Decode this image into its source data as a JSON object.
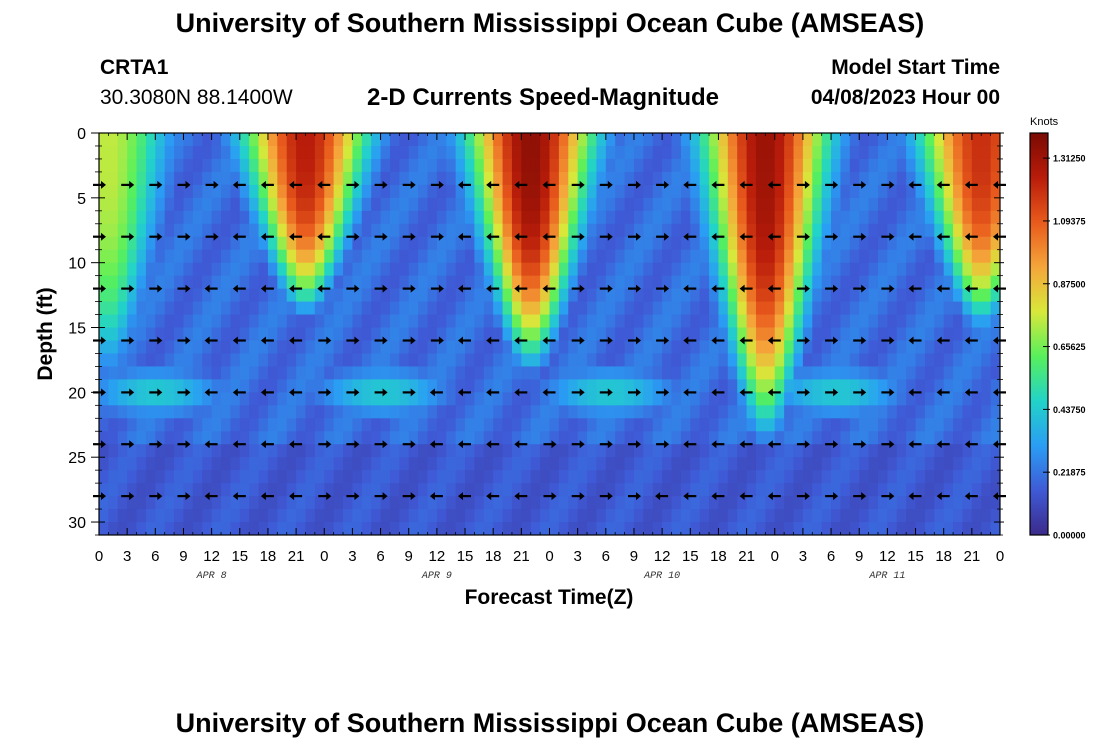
{
  "header": {
    "title": "University of Southern Mississippi Ocean Cube (AMSEAS)",
    "station": "CRTA1",
    "coordinates": "30.3080N  88.1400W",
    "subtitle": "2-D Currents Speed-Magnitude",
    "model_start_label": "Model Start Time",
    "model_start_value": "04/08/2023 Hour 00"
  },
  "footer": {
    "title": "University of Southern Mississippi Ocean Cube (AMSEAS)"
  },
  "colors": {
    "scale": [
      "#3b2a8a",
      "#3f5ad6",
      "#2a9df4",
      "#22d3c8",
      "#57f05c",
      "#d8e83a",
      "#f5a53a",
      "#e85a1c",
      "#b91c0a",
      "#7a0a03"
    ]
  },
  "chart_data": {
    "type": "heatmap",
    "title": "2-D Currents Speed-Magnitude",
    "xlabel": "Forecast Time(Z)",
    "ylabel": "Depth (ft)",
    "x_range": [
      0,
      96
    ],
    "y_range": [
      0,
      31
    ],
    "x_ticks": [
      "0",
      "3",
      "6",
      "9",
      "12",
      "15",
      "18",
      "21",
      "0",
      "3",
      "6",
      "9",
      "12",
      "15",
      "18",
      "21",
      "0",
      "3",
      "6",
      "9",
      "12",
      "15",
      "18",
      "21",
      "0",
      "3",
      "6",
      "9",
      "12",
      "15",
      "18",
      "21",
      "0"
    ],
    "y_ticks": [
      "0",
      "5",
      "10",
      "15",
      "20",
      "25",
      "30"
    ],
    "date_labels": [
      {
        "label": "APR 8",
        "hour": 12
      },
      {
        "label": "APR 9",
        "hour": 36
      },
      {
        "label": "APR 10",
        "hour": 60
      },
      {
        "label": "APR 11",
        "hour": 84
      }
    ],
    "colorbar": {
      "label": "Knots",
      "ticks": [
        "1.31250",
        "1.09375",
        "0.87500",
        "0.65625",
        "0.43750",
        "0.21875",
        "0.00000"
      ],
      "range": [
        0,
        1.4
      ]
    },
    "arrow_depths": [
      4,
      8,
      12,
      16,
      20,
      24,
      28
    ],
    "arrow_hours": [
      0,
      3,
      6,
      9,
      12,
      15,
      18,
      21,
      24,
      27,
      30,
      33,
      36,
      39,
      42,
      45,
      48,
      51,
      54,
      57,
      60,
      63,
      66,
      69,
      72,
      75,
      78,
      81,
      84,
      87,
      90,
      93,
      96
    ],
    "speed_events": [
      {
        "hour": 1,
        "depth_extent": 18,
        "peak": 0.75
      },
      {
        "hour": 22,
        "depth_extent": 13,
        "peak": 1.25
      },
      {
        "hour": 46,
        "depth_extent": 17,
        "peak": 1.35
      },
      {
        "hour": 71,
        "depth_extent": 22,
        "peak": 1.32
      },
      {
        "hour": 94,
        "depth_extent": 14,
        "peak": 1.2
      }
    ]
  }
}
